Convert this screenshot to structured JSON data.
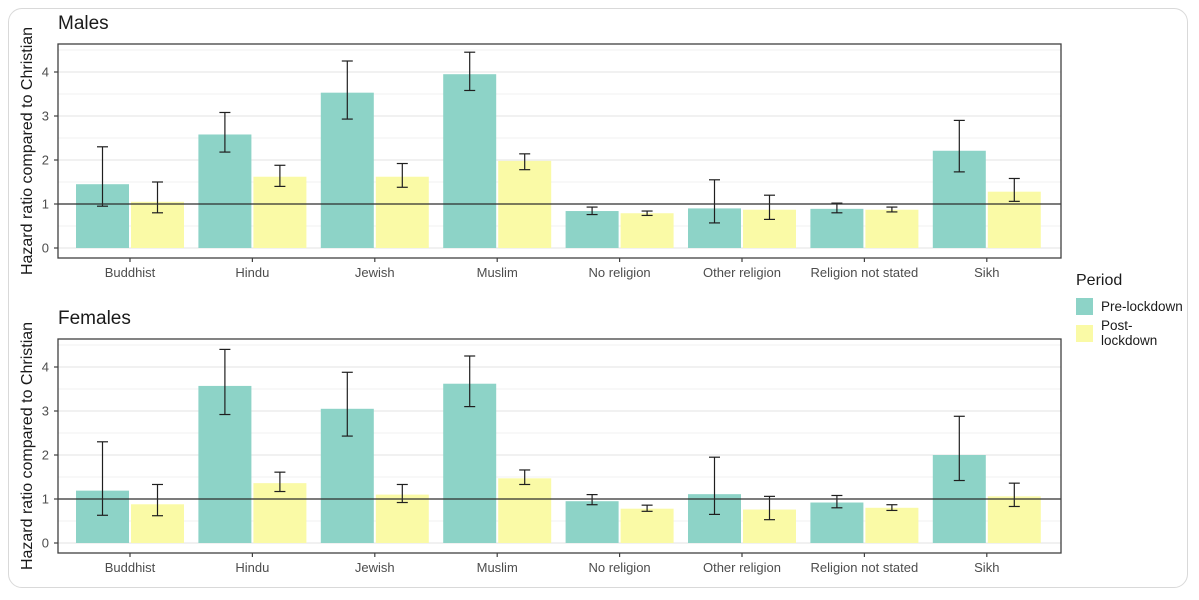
{
  "figure": {
    "panels": [
      {
        "title": "Males",
        "ylabel": "Hazard ratio compared to Christian"
      },
      {
        "title": "Females",
        "ylabel": "Hazard ratio compared to Christian"
      }
    ],
    "legend": {
      "title": "Period",
      "items": [
        {
          "label": "Pre-lockdown",
          "color": "#8dd3c7"
        },
        {
          "label": "Post-lockdown",
          "color": "#fafaa6"
        }
      ]
    },
    "colors": {
      "pre_lockdown": "#8dd3c7",
      "post_lockdown": "#fafaa6",
      "major_grid": "#e3e3e3",
      "minor_grid": "#f0f0f0",
      "panel_border": "#404040",
      "reference_line": "#2d2d2d",
      "error_bar": "#1f1f1f",
      "tick_text": "#4d4d4d"
    }
  },
  "chart_data": [
    {
      "type": "bar",
      "title": "Males",
      "xlabel": "",
      "ylabel": "Hazard ratio compared to Christian",
      "categories": [
        "Buddhist",
        "Hindu",
        "Jewish",
        "Muslim",
        "No religion",
        "Other religion",
        "Religion not stated",
        "Sikh"
      ],
      "series": [
        {
          "name": "Pre-lockdown",
          "color": "#8dd3c7",
          "values": [
            1.45,
            2.58,
            3.53,
            3.95,
            0.84,
            0.9,
            0.89,
            2.21
          ],
          "ci_low": [
            0.95,
            2.18,
            2.93,
            3.58,
            0.76,
            0.57,
            0.8,
            1.73
          ],
          "ci_high": [
            2.3,
            3.08,
            4.25,
            4.45,
            0.93,
            1.55,
            1.02,
            2.9
          ]
        },
        {
          "name": "Post-lockdown",
          "color": "#fafaa6",
          "values": [
            1.05,
            1.62,
            1.62,
            1.98,
            0.79,
            0.87,
            0.87,
            1.28
          ],
          "ci_low": [
            0.8,
            1.4,
            1.38,
            1.78,
            0.74,
            0.65,
            0.82,
            1.06
          ],
          "ci_high": [
            1.5,
            1.88,
            1.92,
            2.14,
            0.84,
            1.2,
            0.93,
            1.58
          ]
        }
      ],
      "ylim": [
        0,
        4.64
      ],
      "yticks": [
        0,
        1,
        2,
        3,
        4
      ],
      "reference_line": 1,
      "grid": true,
      "legend_position": "right"
    },
    {
      "type": "bar",
      "title": "Females",
      "xlabel": "",
      "ylabel": "Hazard ratio compared to Christian",
      "categories": [
        "Buddhist",
        "Hindu",
        "Jewish",
        "Muslim",
        "No religion",
        "Other religion",
        "Religion not stated",
        "Sikh"
      ],
      "series": [
        {
          "name": "Pre-lockdown",
          "color": "#8dd3c7",
          "values": [
            1.19,
            3.57,
            3.05,
            3.62,
            0.95,
            1.11,
            0.92,
            2.0
          ],
          "ci_low": [
            0.63,
            2.92,
            2.43,
            3.1,
            0.87,
            0.65,
            0.8,
            1.42
          ],
          "ci_high": [
            2.3,
            4.4,
            3.88,
            4.25,
            1.1,
            1.95,
            1.08,
            2.88
          ]
        },
        {
          "name": "Post-lockdown",
          "color": "#fafaa6",
          "values": [
            0.88,
            1.36,
            1.1,
            1.47,
            0.78,
            0.76,
            0.8,
            1.06
          ],
          "ci_low": [
            0.62,
            1.17,
            0.92,
            1.33,
            0.72,
            0.53,
            0.74,
            0.83
          ],
          "ci_high": [
            1.33,
            1.61,
            1.33,
            1.66,
            0.86,
            1.06,
            0.87,
            1.36
          ]
        }
      ],
      "ylim": [
        0,
        4.64
      ],
      "yticks": [
        0,
        1,
        2,
        3,
        4
      ],
      "reference_line": 1,
      "grid": true,
      "legend_position": "right"
    }
  ]
}
